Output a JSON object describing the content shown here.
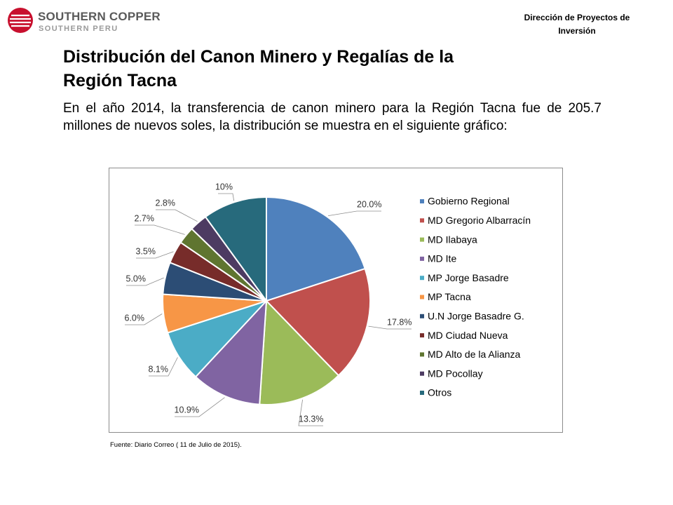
{
  "header": {
    "logo_name": "SOUTHERN COPPER",
    "logo_sub": "SOUTHERN PERU",
    "department_line1": "Dirección de Proyectos de",
    "department_line2": "Inversión",
    "logo_colors": {
      "primary": "#c8102e",
      "text": "#5a5a5a",
      "sub": "#9a9a9a"
    }
  },
  "title_line1": "Distribución del Canon Minero y Regalías de la",
  "title_line2": "Región Tacna",
  "intro": "En el año 2014, la transferencia de canon minero para la Región Tacna fue de 205.7 millones de nuevos soles, la distribución se muestra en el siguiente gráfico:",
  "source": "Fuente: Diario Correo ( 11 de Julio de 2015).",
  "chart_data": {
    "type": "pie",
    "legend_position": "right",
    "slices": [
      {
        "label": "Gobierno Regional",
        "value": 20.0,
        "display": "20.0%",
        "color": "#4f81bd"
      },
      {
        "label": "MD Gregorio Albarracín",
        "value": 17.8,
        "display": "17.8%",
        "color": "#c0504d"
      },
      {
        "label": "MD Ilabaya",
        "value": 13.3,
        "display": "13.3%",
        "color": "#9bbb59"
      },
      {
        "label": "MD Ite",
        "value": 10.9,
        "display": "10.9%",
        "color": "#8064a2"
      },
      {
        "label": "MP Jorge Basadre",
        "value": 8.1,
        "display": "8.1%",
        "color": "#4bacc6"
      },
      {
        "label": "MP Tacna",
        "value": 6.0,
        "display": "6.0%",
        "color": "#f79646"
      },
      {
        "label": "U.N Jorge Basadre G.",
        "value": 5.0,
        "display": "5.0%",
        "color": "#2c4d75"
      },
      {
        "label": "MD Ciudad Nueva",
        "value": 3.5,
        "display": "3.5%",
        "color": "#772c2a"
      },
      {
        "label": "MD Alto de la Alianza",
        "value": 2.7,
        "display": "2.7%",
        "color": "#5f7530"
      },
      {
        "label": "MD Pocollay",
        "value": 2.8,
        "display": "2.8%",
        "color": "#4d3b62"
      },
      {
        "label": "Otros",
        "value": 10.0,
        "display": "10%",
        "color": "#276a7c"
      }
    ]
  }
}
